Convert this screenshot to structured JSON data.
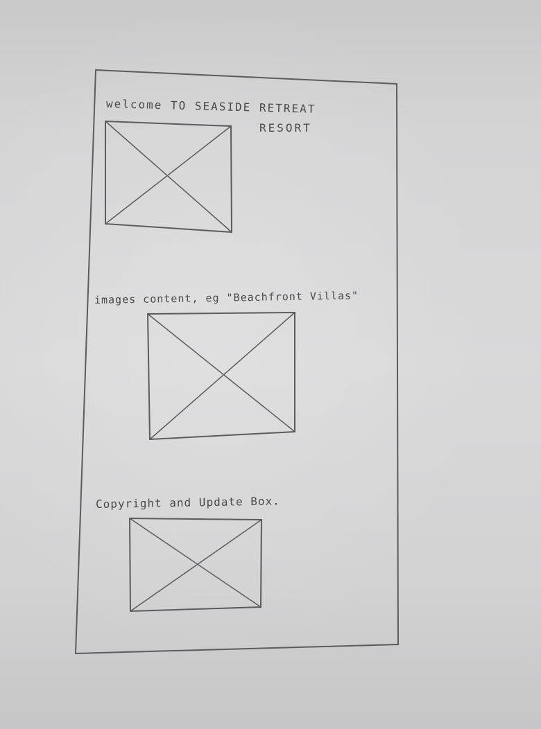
{
  "sketch": {
    "header": {
      "title_line1": "welcome TO SEASIDE RETREAT",
      "title_line2": "RESORT"
    },
    "hero_image": {
      "kind": "image-placeholder"
    },
    "images_section": {
      "label": "images content, eg  \"Beachfront Villas\""
    },
    "villas_image": {
      "kind": "image-placeholder"
    },
    "footer_section": {
      "label": "Copyright and Update Box."
    },
    "footer_image": {
      "kind": "image-placeholder"
    },
    "colors": {
      "paper": "#d6d6d7",
      "pencil": "#5c5c5e"
    }
  }
}
